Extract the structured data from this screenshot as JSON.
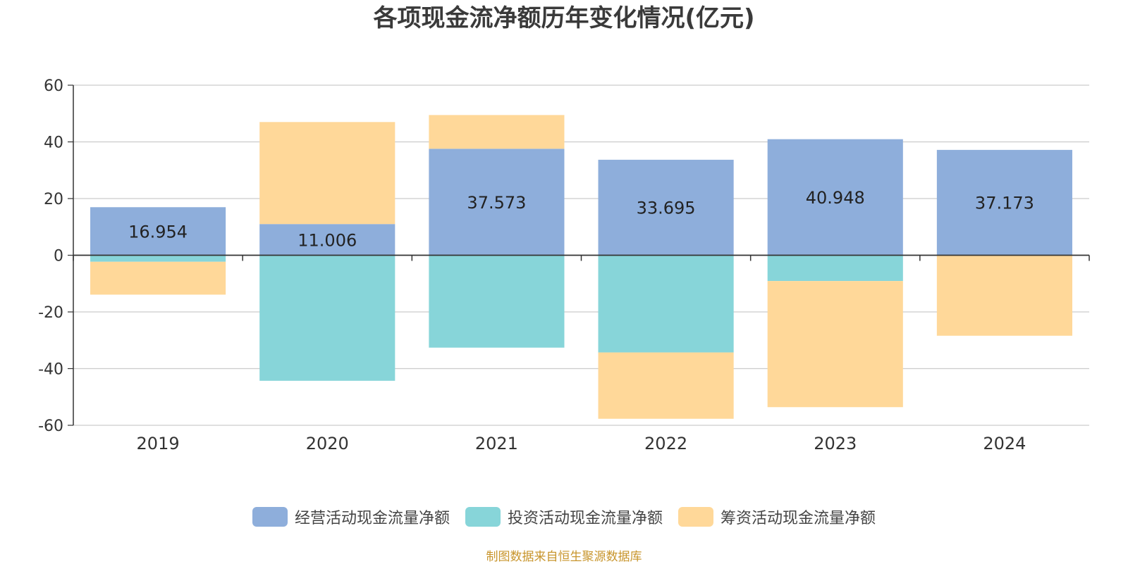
{
  "colors": {
    "operating": "#8eaedb",
    "investing": "#87d5d9",
    "financing": "#ffd899",
    "grid": "#cccccc",
    "axis": "#333333",
    "text": "#333333",
    "source": "#c8952c"
  },
  "source_note": "制图数据来自恒生聚源数据库",
  "chart_data": {
    "type": "bar",
    "stacked": true,
    "title": "各项现金流净额历年变化情况(亿元)",
    "xlabel": "",
    "ylabel": "",
    "categories": [
      "2019",
      "2020",
      "2021",
      "2022",
      "2023",
      "2024"
    ],
    "ylim": [
      -60,
      60
    ],
    "yticks": [
      60,
      40,
      20,
      0,
      -20,
      -40,
      -60
    ],
    "grid": true,
    "legend_position": "bottom",
    "series": [
      {
        "name": "经营活动现金流量净额",
        "color": "#8eaedb",
        "values": [
          16.954,
          11.006,
          37.573,
          33.695,
          40.948,
          37.173
        ],
        "data_labels": [
          "16.954",
          "11.006",
          "37.573",
          "33.695",
          "40.948",
          "37.173"
        ]
      },
      {
        "name": "投资活动现金流量净额",
        "color": "#87d5d9",
        "values": [
          -2.3,
          -44.3,
          -32.6,
          -34.3,
          -9.1,
          0
        ]
      },
      {
        "name": "筹资活动现金流量净额",
        "color": "#ffd899",
        "values": [
          -11.6,
          36.0,
          11.9,
          -23.4,
          -44.5,
          -28.4
        ]
      }
    ]
  }
}
